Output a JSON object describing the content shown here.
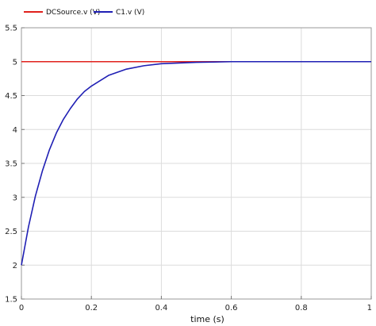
{
  "chart_data": {
    "type": "line",
    "title": "",
    "xlabel": "time (s)",
    "ylabel": "",
    "xlim": [
      0,
      1
    ],
    "ylim": [
      1.5,
      5.5
    ],
    "x_ticks": [
      "0",
      "0.2",
      "0.4",
      "0.6",
      "0.8",
      "1"
    ],
    "y_ticks": [
      "1.5",
      "2",
      "2.5",
      "3",
      "3.5",
      "4",
      "4.5",
      "5",
      "5.5"
    ],
    "grid": true,
    "legend_position": "top-left",
    "series": [
      {
        "name": "DCSource.v (V)",
        "color": "#e0201c",
        "x": [
          0,
          1
        ],
        "y": [
          5,
          5
        ]
      },
      {
        "name": "C1.v (V)",
        "color": "#1f1fb4",
        "x": [
          0,
          0.02,
          0.04,
          0.06,
          0.08,
          0.1,
          0.12,
          0.14,
          0.16,
          0.18,
          0.2,
          0.25,
          0.3,
          0.35,
          0.4,
          0.45,
          0.5,
          0.55,
          0.6,
          0.7,
          0.8,
          0.9,
          1.0
        ],
        "y": [
          2.0,
          2.56,
          3.02,
          3.39,
          3.7,
          3.95,
          4.15,
          4.31,
          4.45,
          4.56,
          4.64,
          4.8,
          4.89,
          4.94,
          4.97,
          4.98,
          4.99,
          4.995,
          5.0,
          5.0,
          5.0,
          5.0,
          5.0
        ]
      }
    ]
  }
}
